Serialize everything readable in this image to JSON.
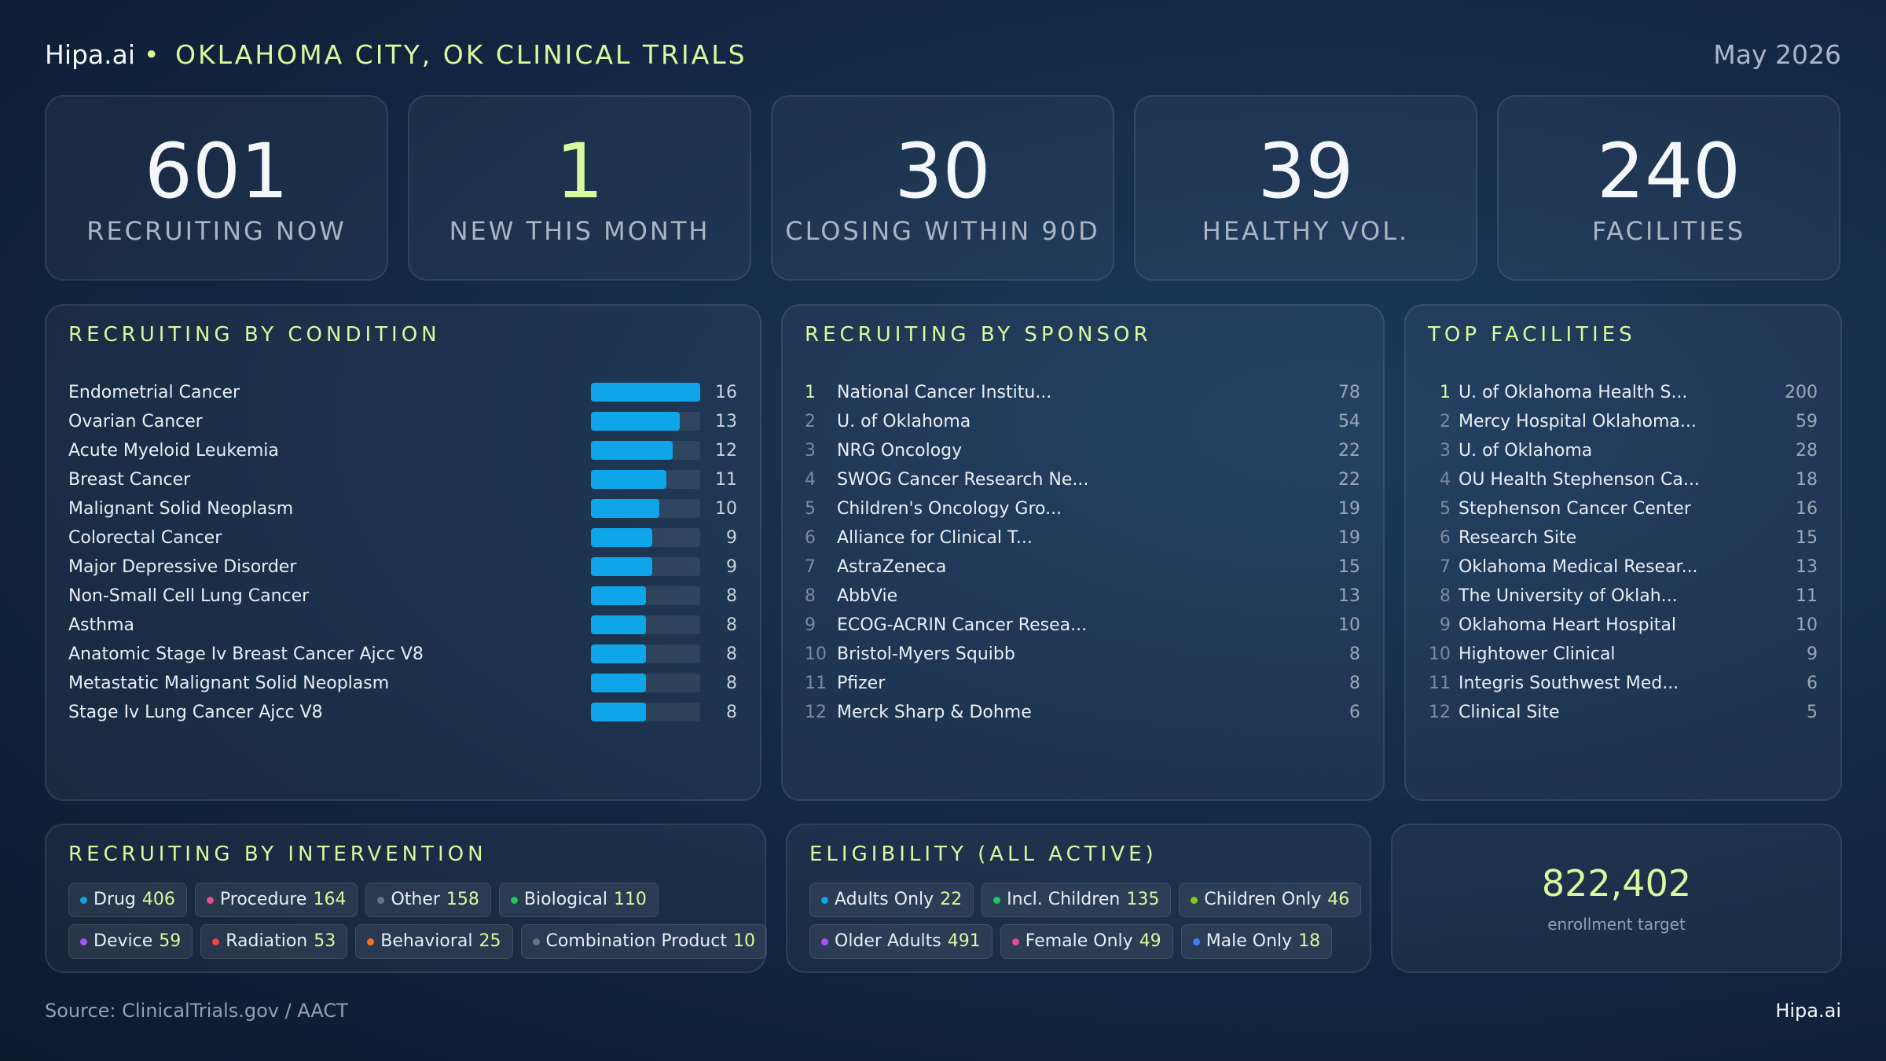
{
  "header": {
    "brand": "Hipa.ai",
    "separator": "•",
    "title": "OKLAHOMA CITY, OK CLINICAL TRIALS",
    "date": "May 2026"
  },
  "kpis": [
    {
      "value": 601,
      "label": "RECRUITING NOW",
      "color": "#f4f7fb"
    },
    {
      "value": 1,
      "label": "NEW THIS MONTH",
      "color": "#d9f99d"
    },
    {
      "value": 30,
      "label": "CLOSING WITHIN 90D",
      "color": "#f4f7fb"
    },
    {
      "value": 39,
      "label": "HEALTHY VOL.",
      "color": "#f4f7fb"
    },
    {
      "value": 240,
      "label": "FACILITIES",
      "color": "#f4f7fb"
    }
  ],
  "conditions": {
    "title": "RECRUITING BY CONDITION",
    "items": [
      {
        "name": "Endometrial Cancer",
        "value": 16
      },
      {
        "name": "Ovarian Cancer",
        "value": 13
      },
      {
        "name": "Acute Myeloid Leukemia",
        "value": 12
      },
      {
        "name": "Breast Cancer",
        "value": 11
      },
      {
        "name": "Malignant Solid Neoplasm",
        "value": 10
      },
      {
        "name": "Colorectal Cancer",
        "value": 9
      },
      {
        "name": "Major Depressive Disorder",
        "value": 9
      },
      {
        "name": "Non-Small Cell Lung Cancer",
        "value": 8
      },
      {
        "name": "Asthma",
        "value": 8
      },
      {
        "name": "Anatomic Stage Iv Breast Cancer Ajcc V8",
        "value": 8
      },
      {
        "name": "Metastatic Malignant Solid Neoplasm",
        "value": 8
      },
      {
        "name": "Stage Iv Lung Cancer Ajcc V8",
        "value": 8
      }
    ]
  },
  "sponsors": {
    "title": "RECRUITING BY SPONSOR",
    "items": [
      {
        "rank": 1,
        "name": "National Cancer Institu...",
        "value": 78
      },
      {
        "rank": 2,
        "name": "U. of Oklahoma",
        "value": 54
      },
      {
        "rank": 3,
        "name": "NRG Oncology",
        "value": 22
      },
      {
        "rank": 4,
        "name": "SWOG Cancer Research Ne...",
        "value": 22
      },
      {
        "rank": 5,
        "name": "Children's Oncology Gro...",
        "value": 19
      },
      {
        "rank": 6,
        "name": "Alliance for Clinical T...",
        "value": 19
      },
      {
        "rank": 7,
        "name": "AstraZeneca",
        "value": 15
      },
      {
        "rank": 8,
        "name": "AbbVie",
        "value": 13
      },
      {
        "rank": 9,
        "name": "ECOG-ACRIN Cancer Resea...",
        "value": 10
      },
      {
        "rank": 10,
        "name": "Bristol-Myers Squibb",
        "value": 8
      },
      {
        "rank": 11,
        "name": "Pfizer",
        "value": 8
      },
      {
        "rank": 12,
        "name": "Merck Sharp & Dohme",
        "value": 6
      }
    ]
  },
  "facilities": {
    "title": "TOP FACILITIES",
    "items": [
      {
        "rank": 1,
        "name": "U. of Oklahoma Health S...",
        "value": 200
      },
      {
        "rank": 2,
        "name": "Mercy Hospital Oklahoma...",
        "value": 59
      },
      {
        "rank": 3,
        "name": "U. of Oklahoma",
        "value": 28
      },
      {
        "rank": 4,
        "name": "OU Health Stephenson Ca...",
        "value": 18
      },
      {
        "rank": 5,
        "name": "Stephenson Cancer Center",
        "value": 16
      },
      {
        "rank": 6,
        "name": "Research Site",
        "value": 15
      },
      {
        "rank": 7,
        "name": "Oklahoma Medical Resear...",
        "value": 13
      },
      {
        "rank": 8,
        "name": "The University of Oklah...",
        "value": 11
      },
      {
        "rank": 9,
        "name": "Oklahoma Heart Hospital",
        "value": 10
      },
      {
        "rank": 10,
        "name": "Hightower Clinical",
        "value": 9
      },
      {
        "rank": 11,
        "name": "Integris Southwest Med...",
        "value": 6
      },
      {
        "rank": 12,
        "name": "Clinical Site",
        "value": 5
      }
    ]
  },
  "interventions": {
    "title": "RECRUITING BY INTERVENTION",
    "rows": [
      [
        {
          "name": "Drug",
          "value": 406,
          "color": "#0ea5e9"
        },
        {
          "name": "Procedure",
          "value": 164,
          "color": "#ec4899"
        },
        {
          "name": "Other",
          "value": 158,
          "color": "#6b7280"
        },
        {
          "name": "Biological",
          "value": 110,
          "color": "#22c55e"
        }
      ],
      [
        {
          "name": "Device",
          "value": 59,
          "color": "#a855f7"
        },
        {
          "name": "Radiation",
          "value": 53,
          "color": "#ef4444"
        },
        {
          "name": "Behavioral",
          "value": 25,
          "color": "#f97316"
        },
        {
          "name": "Combination Product",
          "value": 10,
          "color": "#6b7280"
        }
      ]
    ]
  },
  "eligibility": {
    "title": "ELIGIBILITY (ALL ACTIVE)",
    "rows": [
      [
        {
          "name": "Adults Only",
          "value": 22,
          "color": "#0ea5e9"
        },
        {
          "name": "Incl. Children",
          "value": 135,
          "color": "#22c55e"
        },
        {
          "name": "Children Only",
          "value": 46,
          "color": "#84cc16"
        }
      ],
      [
        {
          "name": "Older Adults",
          "value": 491,
          "color": "#a855f7"
        },
        {
          "name": "Female Only",
          "value": 49,
          "color": "#ec4899"
        },
        {
          "name": "Male Only",
          "value": 18,
          "color": "#3b82f6"
        }
      ]
    ]
  },
  "enrollment": {
    "value": "822,402",
    "label": "enrollment target"
  },
  "footer": {
    "source": "Source: ClinicalTrials.gov /  AACT",
    "brand": "Hipa.ai"
  }
}
